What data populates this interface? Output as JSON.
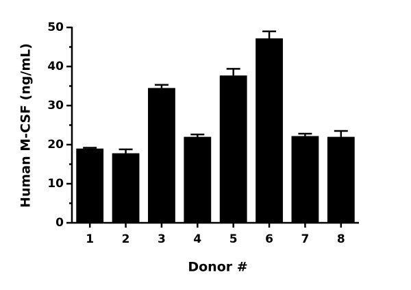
{
  "chart_data": {
    "type": "bar",
    "x_label": "Donor #",
    "y_label": "Human M-CSF (ng/mL)",
    "categories": [
      "1",
      "2",
      "3",
      "4",
      "5",
      "6",
      "7",
      "8"
    ],
    "values": [
      19,
      17.8,
      34.5,
      22,
      37.7,
      47.2,
      22.2,
      22
    ],
    "errors": [
      0.2,
      1,
      0.8,
      0.6,
      1.7,
      1.8,
      0.6,
      1.5
    ],
    "color": "#000000",
    "ylim": [
      0,
      50
    ],
    "yticks": [
      0,
      10,
      20,
      30,
      40,
      50
    ],
    "yminorticks": [
      5,
      15,
      25,
      35,
      45
    ]
  }
}
